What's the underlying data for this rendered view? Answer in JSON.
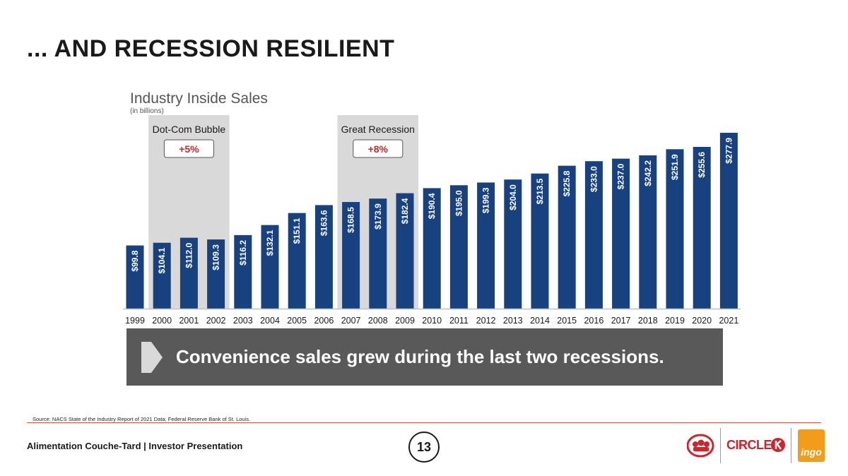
{
  "slide": {
    "title": "... AND RECESSION RESILIENT",
    "callout_text": "Convenience sales grew during the last two recessions.",
    "source": "Source: NACS State of the Industry Report of 2021 Data; Federal Reserve Bank of St. Louis.",
    "footer_text": "Alimentation Couche-Tard | Investor Presentation",
    "page_number": "13",
    "logos": {
      "circle_k": "CIRCLE",
      "ingo": "ingo"
    }
  },
  "chart_data": {
    "type": "bar",
    "title": "Industry Inside Sales",
    "subtitle": "(in billions)",
    "categories": [
      "1999",
      "2000",
      "2001",
      "2002",
      "2003",
      "2004",
      "2005",
      "2006",
      "2007",
      "2008",
      "2009",
      "2010",
      "2011",
      "2012",
      "2013",
      "2014",
      "2015",
      "2016",
      "2017",
      "2018",
      "2019",
      "2020",
      "2021"
    ],
    "values": [
      99.8,
      104.1,
      112.0,
      109.3,
      116.2,
      132.1,
      151.1,
      163.6,
      168.5,
      173.9,
      182.4,
      190.4,
      195.0,
      199.3,
      204.0,
      213.5,
      225.8,
      233.0,
      237.0,
      242.2,
      251.9,
      255.6,
      277.9
    ],
    "value_labels": [
      "$99.8",
      "$104.1",
      "$112.0",
      "$109.3",
      "$116.2",
      "$132.1",
      "$151.1",
      "$163.6",
      "$168.5",
      "$173.9",
      "$182.4",
      "$190.4",
      "$195.0",
      "$199.3",
      "$204.0",
      "$213.5",
      "$225.8",
      "$233.0",
      "$237.0",
      "$242.2",
      "$251.9",
      "$255.6",
      "$277.9"
    ],
    "ylim": [
      0,
      280
    ],
    "xlabel": "",
    "ylabel": "",
    "bar_color": "#17427f",
    "highlights": [
      {
        "label": "Dot-Com Bubble",
        "growth": "+5%",
        "from": "2000",
        "to": "2002"
      },
      {
        "label": "Great Recession",
        "growth": "+8%",
        "from": "2007",
        "to": "2009"
      }
    ],
    "highlight_color": "#d9d9d9",
    "growth_color": "#d2232a"
  }
}
